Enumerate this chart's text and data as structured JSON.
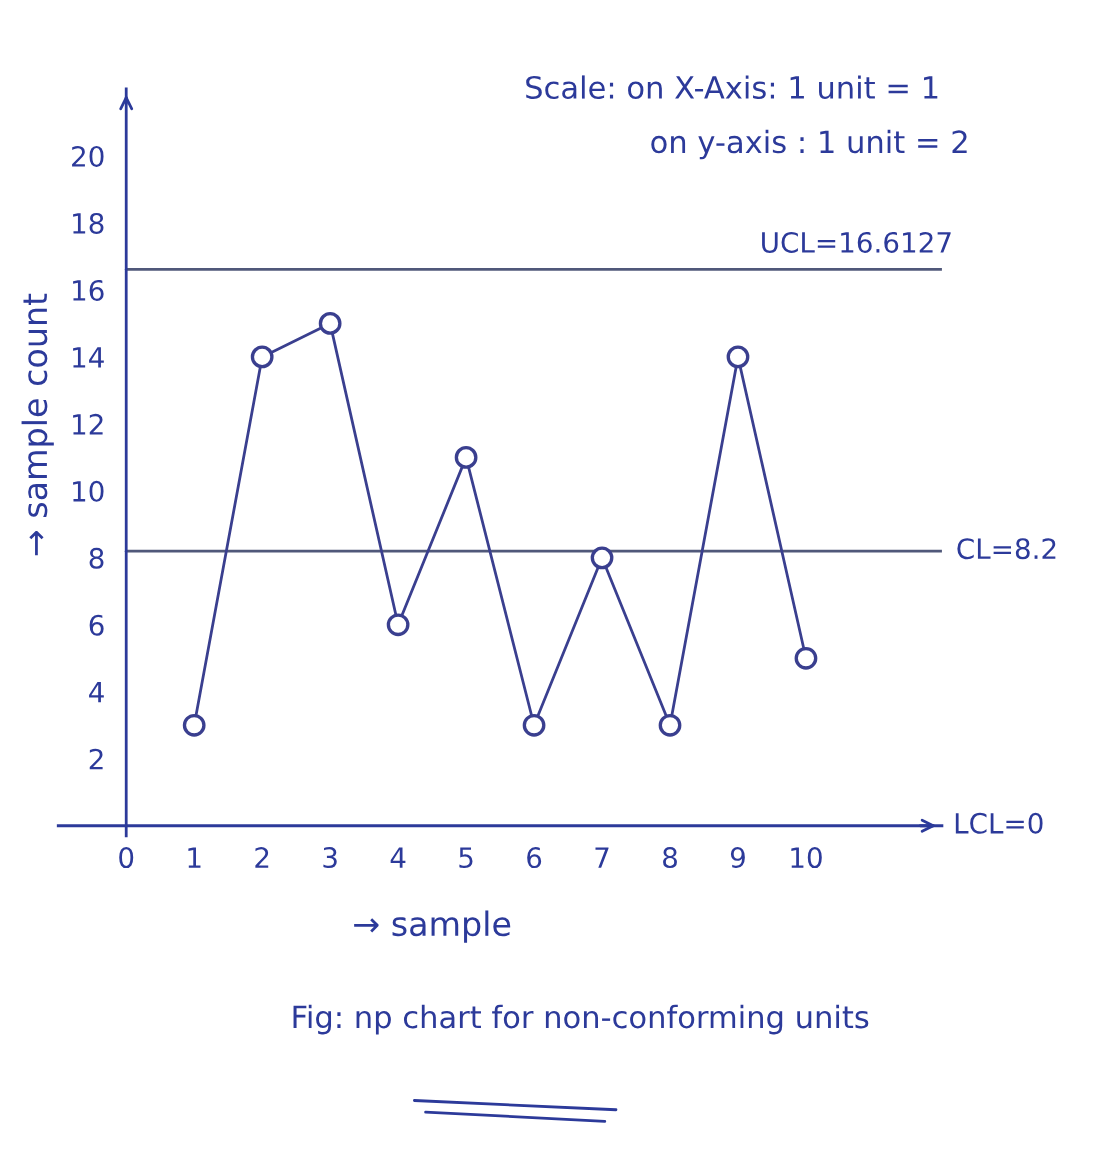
{
  "chart_data": {
    "type": "line",
    "xlabel": "→ sample",
    "ylabel": "→ sample count",
    "annotations": [
      "Scale: on X-Axis: 1 unit = 1",
      "on y-axis : 1 unit = 2",
      "Fig: np chart for non-conforming units",
      "LCL=0"
    ],
    "x": [
      1,
      2,
      3,
      4,
      5,
      6,
      7,
      8,
      9,
      10
    ],
    "series": [
      {
        "color": "#3a3f8f",
        "values": [
          3,
          14,
          15,
          6,
          11,
          3,
          8,
          3,
          14,
          5
        ]
      }
    ],
    "marker": "circle",
    "line_style": "solid",
    "xlim": [
      -1,
      12
    ],
    "ylim": [
      -0.3,
      22
    ],
    "xticks": [
      0,
      1,
      2,
      3,
      4,
      5,
      6,
      7,
      8,
      9,
      10
    ],
    "yticks": [
      2,
      4,
      6,
      8,
      10,
      12,
      14,
      16,
      18,
      20
    ],
    "ref_lines": [
      {
        "axis": "y",
        "value": 16.6127,
        "label": "UCL=16.6127",
        "color": "#50587a"
      },
      {
        "axis": "y",
        "value": 8.2,
        "label": "CL=8.2",
        "color": "#50587a"
      }
    ]
  }
}
